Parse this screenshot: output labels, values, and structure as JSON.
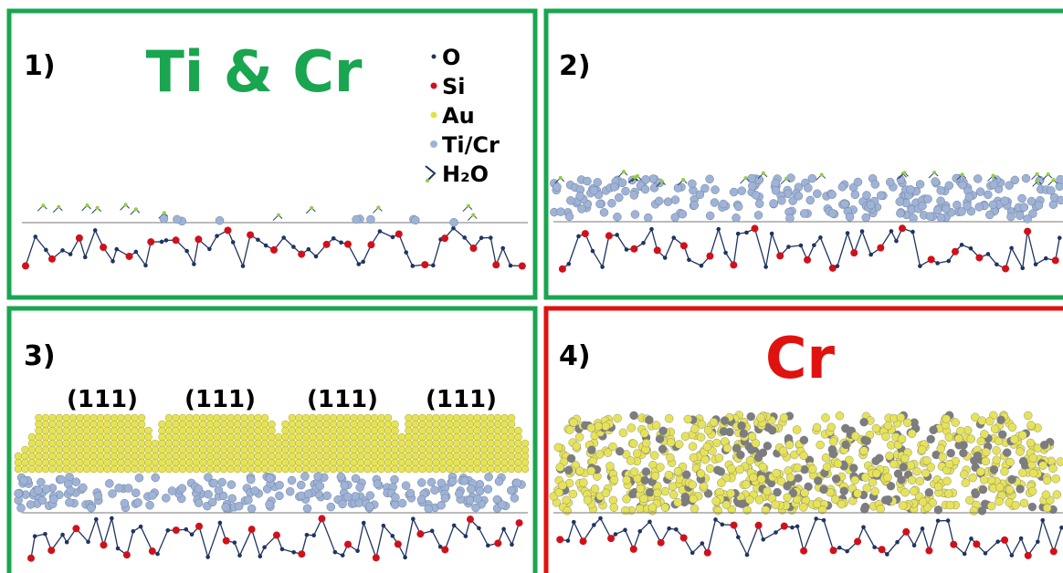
{
  "panels": [
    {
      "label": "1)",
      "title": "Ti & Cr",
      "legend": [
        "O",
        "Si",
        "Au",
        "Ti/Cr",
        "H₂O"
      ]
    },
    {
      "label": "2)"
    },
    {
      "label": "3)",
      "facets": [
        "(111)",
        "(111)",
        "(111)",
        "(111)"
      ]
    },
    {
      "label": "4)",
      "title": "Cr"
    }
  ]
}
